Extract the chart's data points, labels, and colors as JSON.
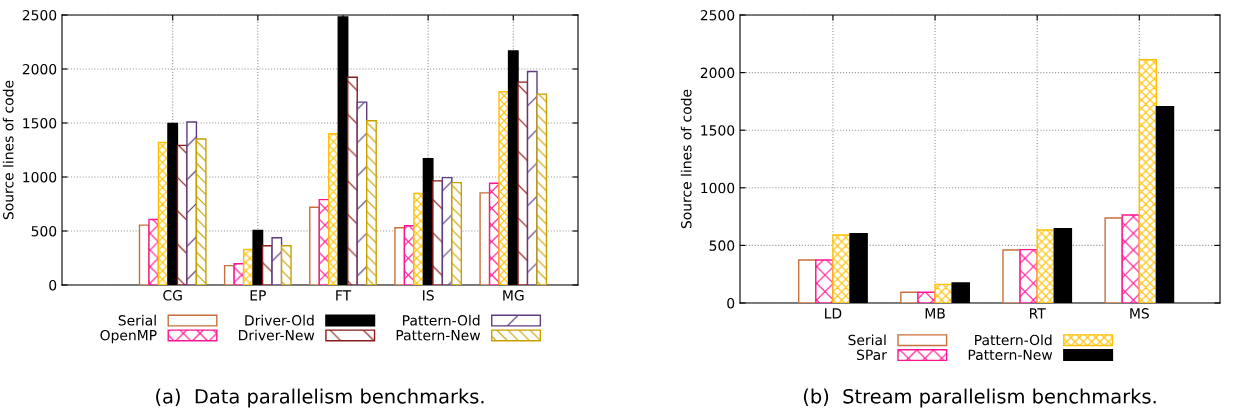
{
  "chart_data": [
    {
      "type": "bar",
      "categories": [
        "CG",
        "EP",
        "FT",
        "IS",
        "MG"
      ],
      "ylabel": "Source lines of code",
      "ylim": [
        0,
        2500
      ],
      "yticks": [
        0,
        500,
        1000,
        1500,
        2000,
        2500
      ],
      "grid": true,
      "legend": "bottom",
      "annotations": [
        "(a)  Data parallelism benchmarks."
      ],
      "series": [
        {
          "name": "Serial",
          "color": "#c8703c",
          "values": [
            554,
            179,
            720,
            530,
            853
          ]
        },
        {
          "name": "OpenMP",
          "color": "#ff1493",
          "values": [
            607,
            197,
            791,
            548,
            942
          ]
        },
        {
          "color": "#ffc000",
          "values": [
            1321,
            329,
            1401,
            847,
            1789
          ]
        },
        {
          "name": "Driver-Old",
          "color": "#000000",
          "values": [
            1496,
            505,
            2481,
            1170,
            2167
          ]
        },
        {
          "name": "Driver-New",
          "color": "#8b1a1a",
          "values": [
            1293,
            363,
            1924,
            964,
            1878
          ]
        },
        {
          "name": "Pattern-Old",
          "color": "#5e3c7e",
          "values": [
            1509,
            437,
            1693,
            994,
            1977
          ]
        },
        {
          "name": "Pattern-New",
          "color": "#c8a000",
          "values": [
            1352,
            363,
            1521,
            948,
            1767
          ]
        }
      ]
    },
    {
      "type": "bar",
      "categories": [
        "LD",
        "MB",
        "RT",
        "MS"
      ],
      "ylabel": "Source lines of code",
      "ylim": [
        0,
        2500
      ],
      "yticks": [
        0,
        500,
        1000,
        1500,
        2000,
        2500
      ],
      "grid": true,
      "legend": "bottom",
      "annotations": [
        "(b)  Stream parallelism benchmarks."
      ],
      "series": [
        {
          "name": "Serial",
          "color": "#c8703c",
          "values": [
            373,
            93,
            460,
            738
          ]
        },
        {
          "name": "SPar",
          "color": "#ff1493",
          "values": [
            373,
            93,
            463,
            764
          ]
        },
        {
          "name": "Pattern-Old",
          "color": "#ffc000",
          "values": [
            590,
            162,
            634,
            2112
          ]
        },
        {
          "name": "Pattern-New",
          "color": "#000000",
          "values": [
            602,
            174,
            645,
            1704
          ]
        }
      ]
    }
  ]
}
